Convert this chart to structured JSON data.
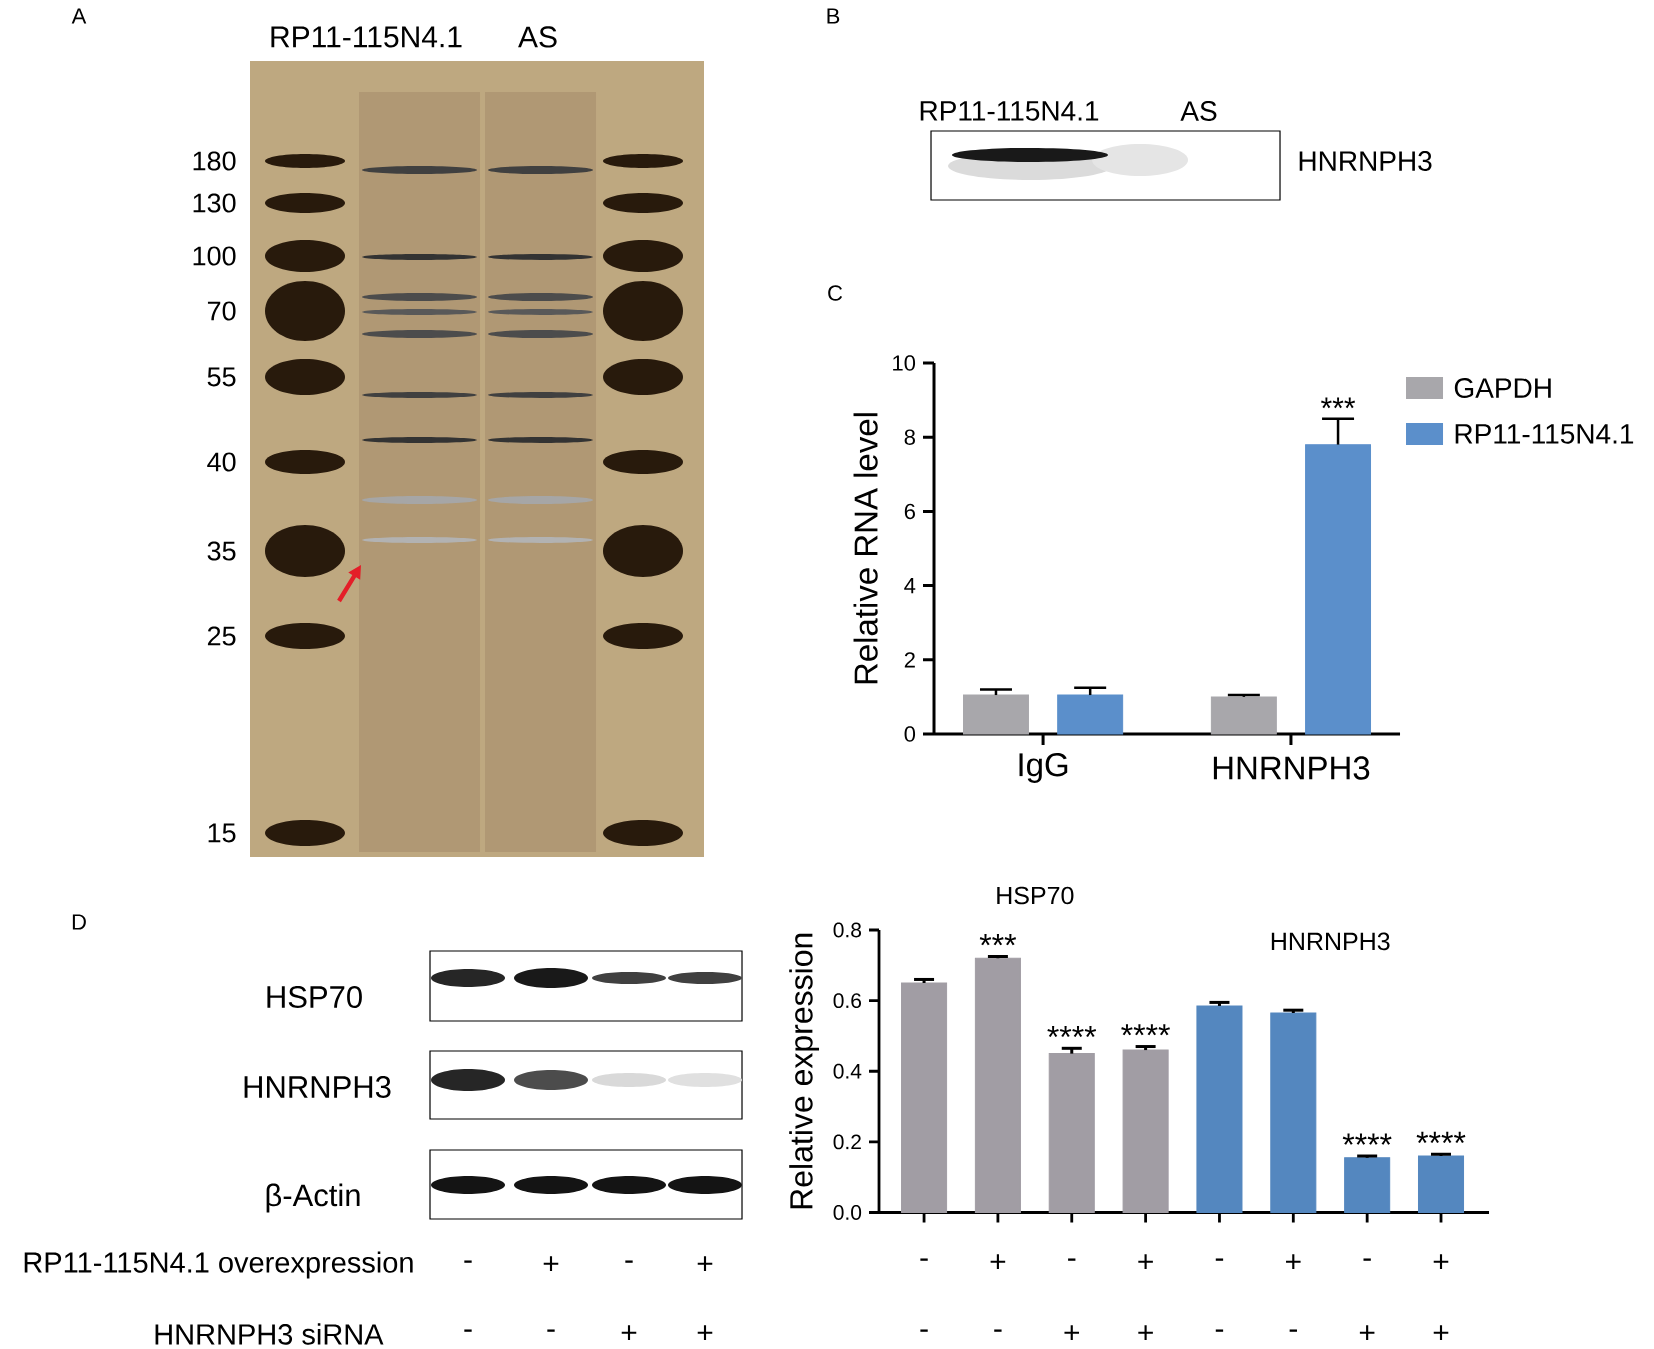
{
  "chart_data": [
    {
      "type": "other",
      "title": "A",
      "annotations": [
        "RP11-115N4.1",
        "AS",
        "180",
        "130",
        "100",
        "70",
        "55",
        "40",
        "35",
        "25",
        "15"
      ]
    },
    {
      "type": "other",
      "title": "B",
      "annotations": [
        "RP11-115N4.1",
        "AS",
        "HNRNPH3"
      ]
    },
    {
      "type": "bar",
      "title": "C",
      "categories": [
        "IgG",
        "HNRNPH3"
      ],
      "ylabel": "Relative RNA level",
      "ylim": [
        0,
        10
      ],
      "yticks": [
        0,
        2,
        4,
        6,
        8,
        10
      ],
      "legend": "top right",
      "series": [
        {
          "name": "GAPDH",
          "color": "#a8a7ab",
          "values": [
            1.05,
            1.0
          ],
          "errors": [
            0.15,
            0.05
          ]
        },
        {
          "name": "RP11-115N4.1",
          "color": "#5b8fcb",
          "values": [
            1.05,
            7.8
          ],
          "errors": [
            0.2,
            0.7
          ],
          "value_labels": [
            null,
            "***"
          ]
        }
      ]
    },
    {
      "type": "other",
      "title": "D",
      "annotations": [
        "HSP70",
        "HNRNPH3",
        "β-Actin",
        "RP11-115N4.1 overexpression",
        "-",
        "+",
        "-",
        "+",
        "HNRNPH3 siRNA",
        "-",
        "-",
        "+",
        "+"
      ]
    },
    {
      "type": "bar",
      "categories": [
        "-",
        "+",
        "-",
        "+",
        "-",
        "+",
        "-",
        "+"
      ],
      "ylabel": "Relative expression",
      "ylim": [
        0,
        0.8
      ],
      "yticks": [
        {
          "value": 0,
          "label": "0.0"
        },
        0.2,
        0.4,
        0.6,
        0.8
      ],
      "series": [
        {
          "name": "HSP70",
          "color": "#a19da4",
          "values": [
            0.65,
            0.72,
            0.45,
            0.46,
            null,
            null,
            null,
            null
          ],
          "errors": [
            0.01,
            0.005,
            0.015,
            0.01,
            null,
            null,
            null,
            null
          ],
          "value_labels": [
            null,
            "***",
            "****",
            "****",
            null,
            null,
            null,
            null
          ]
        },
        {
          "name": "HNRNPH3",
          "color": "#5487bf",
          "values": [
            null,
            null,
            null,
            null,
            0.585,
            0.565,
            0.155,
            0.16
          ],
          "errors": [
            null,
            null,
            null,
            null,
            0.01,
            0.008,
            0.005,
            0.005
          ],
          "value_labels": [
            null,
            null,
            null,
            null,
            null,
            null,
            "****",
            "****"
          ]
        }
      ],
      "annotations": [
        "-",
        "-",
        "+",
        "+",
        "-",
        "-",
        "+",
        "+"
      ]
    }
  ]
}
